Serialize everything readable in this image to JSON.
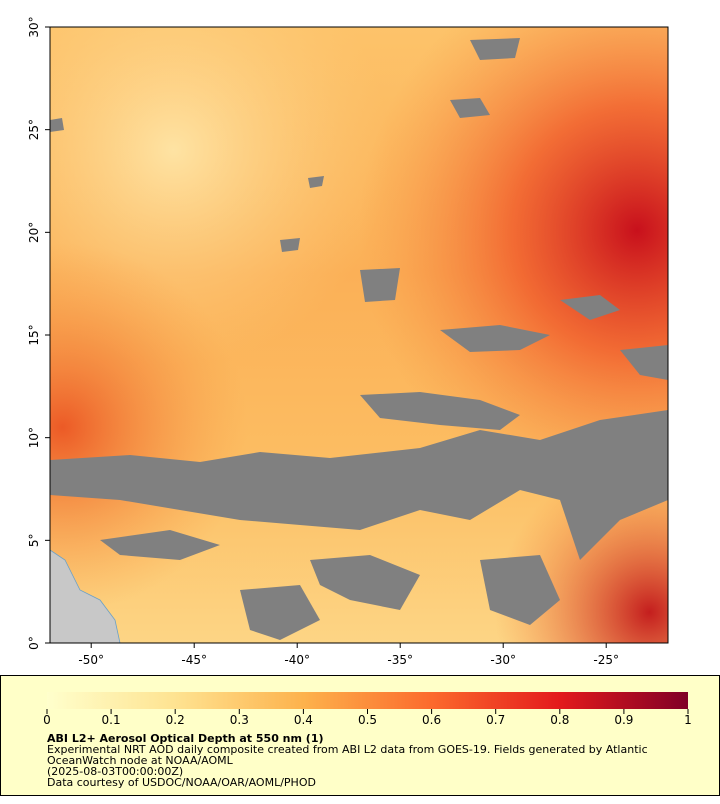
{
  "map": {
    "xlim": [
      -52,
      -22
    ],
    "ylim": [
      0,
      30
    ],
    "xticks": [
      {
        "value": -50,
        "label": "-50°"
      },
      {
        "value": -45,
        "label": "-45°"
      },
      {
        "value": -40,
        "label": "-40°"
      },
      {
        "value": -35,
        "label": "-35°"
      },
      {
        "value": -30,
        "label": "-30°"
      },
      {
        "value": -25,
        "label": "-25°"
      }
    ],
    "yticks": [
      {
        "value": 0,
        "label": "0°"
      },
      {
        "value": 5,
        "label": "5°"
      },
      {
        "value": 10,
        "label": "10°"
      },
      {
        "value": 15,
        "label": "15°"
      },
      {
        "value": 20,
        "label": "20°"
      },
      {
        "value": 25,
        "label": "25°"
      },
      {
        "value": 30,
        "label": "30°"
      }
    ]
  },
  "colorbar": {
    "lim": [
      0,
      1
    ],
    "ticks": [
      0,
      0.1,
      0.2,
      0.3,
      0.4,
      0.5,
      0.6,
      0.7,
      0.8,
      0.9,
      1
    ]
  },
  "caption": {
    "title": "ABI L2+ Aerosol Optical Depth at 550 nm (1)",
    "line1": "Experimental NRT AOD daily composite created from ABI L2 data from GOES-19. Fields generated by Atlantic",
    "line2": "OceanWatch node at NOAA/AOML",
    "line3": "(2025-08-03T00:00:00Z)",
    "line4": "Data courtesy of USDOC/NOAA/OAR/AOML/PHOD"
  }
}
